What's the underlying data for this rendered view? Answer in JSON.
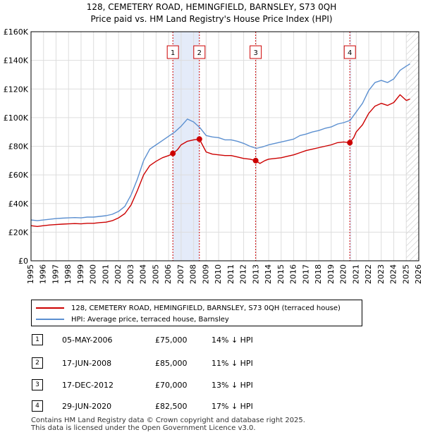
{
  "chart_data": {
    "type": "line",
    "title": "128, CEMETERY ROAD, HEMINGFIELD, BARNSLEY, S73 0QH",
    "subtitle": "Price paid vs. HM Land Registry's House Price Index (HPI)",
    "xlabel": "",
    "ylabel": "",
    "xlim": [
      1995,
      2026
    ],
    "ylim": [
      0,
      160000
    ],
    "x_ticks": [
      "1995",
      "1996",
      "1997",
      "1998",
      "1999",
      "2000",
      "2001",
      "2002",
      "2003",
      "2004",
      "2005",
      "2006",
      "2007",
      "2008",
      "2009",
      "2010",
      "2011",
      "2012",
      "2013",
      "2014",
      "2015",
      "2016",
      "2017",
      "2018",
      "2019",
      "2020",
      "2021",
      "2022",
      "2023",
      "2024",
      "2025",
      "2026"
    ],
    "y_ticks": [
      {
        "value": 0,
        "label": "£0"
      },
      {
        "value": 20000,
        "label": "£20K"
      },
      {
        "value": 40000,
        "label": "£40K"
      },
      {
        "value": 60000,
        "label": "£60K"
      },
      {
        "value": 80000,
        "label": "£80K"
      },
      {
        "value": 100000,
        "label": "£100K"
      },
      {
        "value": 120000,
        "label": "£120K"
      },
      {
        "value": 140000,
        "label": "£140K"
      },
      {
        "value": 160000,
        "label": "£160K"
      }
    ],
    "grid": true,
    "shaded_ranges": [
      [
        2006.34,
        2008.46
      ],
      [
        2020.49,
        2020.55
      ]
    ],
    "future_hatch_from": 2025.0,
    "series": [
      {
        "name": "HPI: Average price, terraced house, Barnsley",
        "color": "#5b8fd0",
        "x": [
          1995.0,
          1995.5,
          1996.0,
          1996.5,
          1997.0,
          1997.5,
          1998.0,
          1998.5,
          1999.0,
          1999.5,
          2000.0,
          2000.5,
          2001.0,
          2001.5,
          2002.0,
          2002.5,
          2003.0,
          2003.5,
          2004.0,
          2004.5,
          2005.0,
          2005.5,
          2006.0,
          2006.5,
          2007.0,
          2007.5,
          2008.0,
          2008.5,
          2009.0,
          2009.5,
          2010.0,
          2010.5,
          2011.0,
          2011.5,
          2012.0,
          2012.5,
          2013.0,
          2013.5,
          2014.0,
          2014.5,
          2015.0,
          2015.5,
          2016.0,
          2016.5,
          2017.0,
          2017.5,
          2018.0,
          2018.5,
          2019.0,
          2019.5,
          2020.0,
          2020.5,
          2021.0,
          2021.5,
          2022.0,
          2022.5,
          2023.0,
          2023.5,
          2024.0,
          2024.5,
          2025.0,
          2025.3
        ],
        "values": [
          28500,
          28000,
          28500,
          29000,
          29500,
          29800,
          30000,
          30200,
          30000,
          30500,
          30500,
          31000,
          31500,
          32500,
          34500,
          38000,
          46000,
          57000,
          70000,
          78000,
          81000,
          84000,
          87000,
          90000,
          94000,
          99000,
          97000,
          93000,
          87500,
          86500,
          86000,
          84500,
          84500,
          83500,
          82000,
          80000,
          78500,
          79500,
          81000,
          82000,
          83000,
          84000,
          85000,
          87500,
          88500,
          90000,
          91000,
          92500,
          93500,
          95500,
          96500,
          98000,
          104000,
          110000,
          119000,
          124500,
          126000,
          124500,
          127000,
          133000,
          136000,
          137500
        ]
      },
      {
        "name": "128, CEMETERY ROAD, HEMINGFIELD, BARNSLEY, S73 0QH (terraced house)",
        "color": "#cc0000",
        "x": [
          1995.0,
          1995.5,
          1996.0,
          1996.5,
          1997.0,
          1997.5,
          1998.0,
          1998.5,
          1999.0,
          1999.5,
          2000.0,
          2000.5,
          2001.0,
          2001.5,
          2002.0,
          2002.5,
          2003.0,
          2003.5,
          2004.0,
          2004.5,
          2005.0,
          2005.5,
          2006.0,
          2006.34,
          2006.7,
          2007.0,
          2007.5,
          2008.0,
          2008.46,
          2008.7,
          2009.0,
          2009.5,
          2010.0,
          2010.5,
          2011.0,
          2011.5,
          2012.0,
          2012.5,
          2012.96,
          2013.3,
          2013.7,
          2014.0,
          2014.5,
          2015.0,
          2015.5,
          2016.0,
          2016.5,
          2017.0,
          2017.5,
          2018.0,
          2018.5,
          2019.0,
          2019.5,
          2020.0,
          2020.49,
          2020.8,
          2021.0,
          2021.5,
          2022.0,
          2022.5,
          2023.0,
          2023.5,
          2024.0,
          2024.5,
          2025.0,
          2025.3
        ],
        "values": [
          24500,
          24000,
          24500,
          25000,
          25300,
          25600,
          25800,
          26000,
          25800,
          26200,
          26200,
          26700,
          27000,
          28000,
          30000,
          33000,
          39000,
          49000,
          60000,
          66500,
          69500,
          72000,
          73500,
          75000,
          77500,
          81000,
          83500,
          84500,
          85000,
          81000,
          76000,
          74500,
          74000,
          73500,
          73500,
          72500,
          71500,
          71000,
          70000,
          68000,
          70000,
          71000,
          71500,
          72000,
          73000,
          74000,
          75500,
          77000,
          78000,
          79000,
          80000,
          81000,
          82500,
          83000,
          82500,
          86000,
          90000,
          95000,
          103000,
          108000,
          110000,
          108500,
          110500,
          116000,
          112000,
          113000
        ]
      }
    ],
    "sales": [
      {
        "num": "1",
        "x": 2006.34,
        "value": 75000
      },
      {
        "num": "2",
        "x": 2008.46,
        "value": 85000
      },
      {
        "num": "3",
        "x": 2012.96,
        "value": 70000
      },
      {
        "num": "4",
        "x": 2020.49,
        "value": 82500
      }
    ]
  },
  "legend": {
    "property": "128, CEMETERY ROAD, HEMINGFIELD, BARNSLEY, S73 0QH (terraced house)",
    "hpi": "HPI: Average price, terraced house, Barnsley",
    "property_color": "#cc0000",
    "hpi_color": "#5b8fd0"
  },
  "sales_table": [
    {
      "num": "1",
      "date": "05-MAY-2006",
      "price": "£75,000",
      "delta": "14% ↓ HPI"
    },
    {
      "num": "2",
      "date": "17-JUN-2008",
      "price": "£85,000",
      "delta": "11% ↓ HPI"
    },
    {
      "num": "3",
      "date": "17-DEC-2012",
      "price": "£70,000",
      "delta": "13% ↓ HPI"
    },
    {
      "num": "4",
      "date": "29-JUN-2020",
      "price": "£82,500",
      "delta": "17% ↓ HPI"
    }
  ],
  "footer": {
    "line1": "Contains HM Land Registry data © Crown copyright and database right 2025.",
    "line2": "This data is licensed under the Open Government Licence v3.0."
  }
}
